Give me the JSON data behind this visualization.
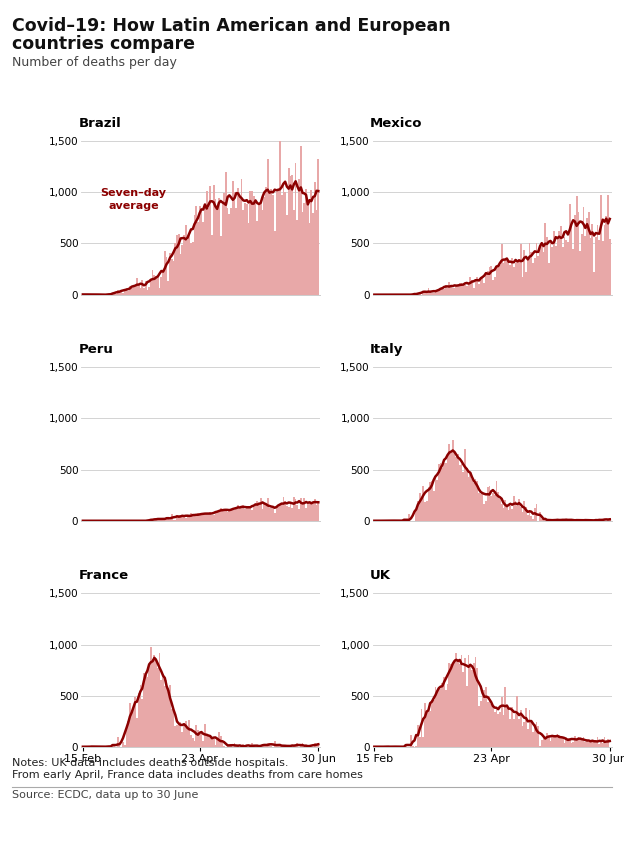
{
  "title_line1": "Covid–19: How Latin American and European",
  "title_line2": "countries compare",
  "subtitle": "Number of deaths per day",
  "notes_line1": "Notes: UK data includes deaths outside hospitals.",
  "notes_line2": "From early April, France data includes deaths from care homes",
  "source": "Source: ECDC, data up to 30 June",
  "bar_color": "#e8a8a8",
  "line_color": "#8b0000",
  "annotation_color": "#8b0000",
  "background_color": "#ffffff",
  "grid_color": "#cccccc",
  "countries": [
    "Brazil",
    "Mexico",
    "Peru",
    "Italy",
    "France",
    "UK"
  ],
  "ylim": [
    0,
    1600
  ],
  "yticks": [
    0,
    500,
    1000,
    1500
  ],
  "n_days": 136,
  "x_tick_labels": [
    "15 Feb",
    "23 Apr",
    "30 Jun"
  ],
  "x_tick_positions": [
    0,
    67,
    135
  ],
  "annotation_text": "Seven–day\naverage"
}
